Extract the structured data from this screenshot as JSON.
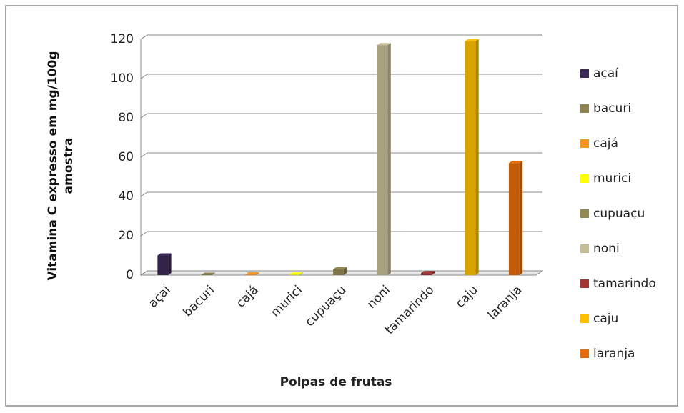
{
  "chart_data": {
    "type": "bar",
    "y_label": "Vitamina C expresso em mg/100g amostra",
    "x_label": "Polpas de frutas",
    "categories": [
      "açaí",
      "bacuri",
      "cajá",
      "murici",
      "cupuaçu",
      "noni",
      "tamarindo",
      "caju",
      "laranja"
    ],
    "values": [
      10,
      0.2,
      0.3,
      0.3,
      3,
      117,
      1,
      119,
      57
    ],
    "colors": [
      "#3b2a55",
      "#8f8350",
      "#f7931e",
      "#ffff00",
      "#938953",
      "#c4bd97",
      "#a33535",
      "#ffc000",
      "#e46c0a"
    ],
    "ylim": [
      0,
      120
    ],
    "yticks": [
      0,
      20,
      40,
      60,
      80,
      100,
      120
    ],
    "grid": true,
    "legend": "right"
  }
}
